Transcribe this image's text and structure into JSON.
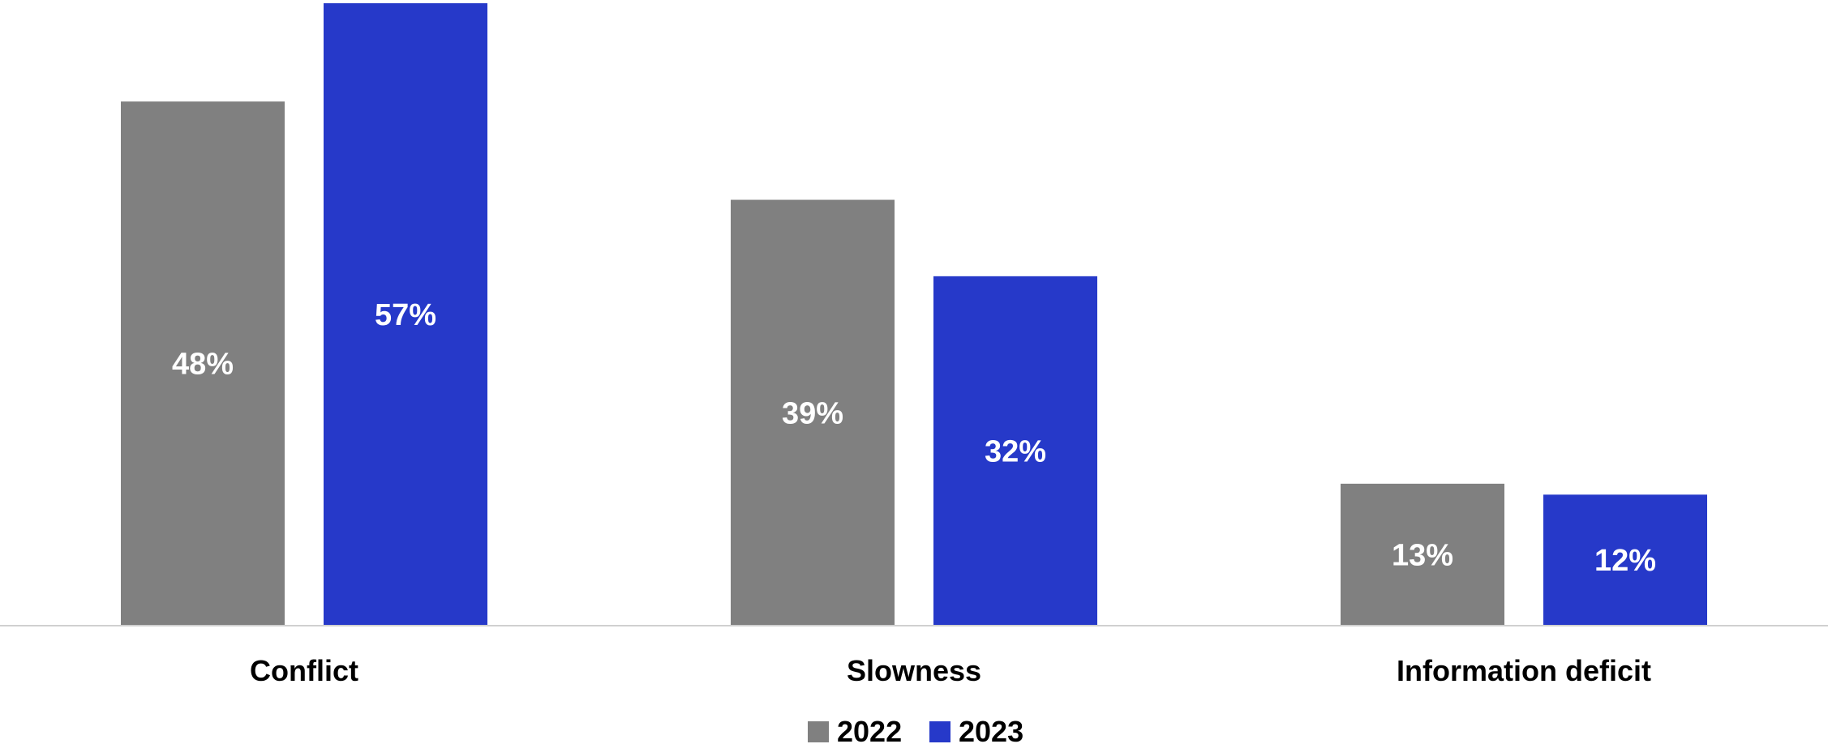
{
  "chart_data": {
    "type": "bar",
    "categories": [
      "Conflict",
      "Slowness",
      "Information deficit"
    ],
    "series": [
      {
        "name": "2022",
        "values": [
          48,
          39,
          13
        ],
        "labels": [
          "48%",
          "39%",
          "13%"
        ],
        "color": "#808080"
      },
      {
        "name": "2023",
        "values": [
          57,
          32,
          12
        ],
        "labels": [
          "57%",
          "32%",
          "12%"
        ],
        "color": "#2639C9"
      }
    ],
    "ylim": [
      0,
      57
    ],
    "grid": false,
    "legend": "bottom-center"
  }
}
